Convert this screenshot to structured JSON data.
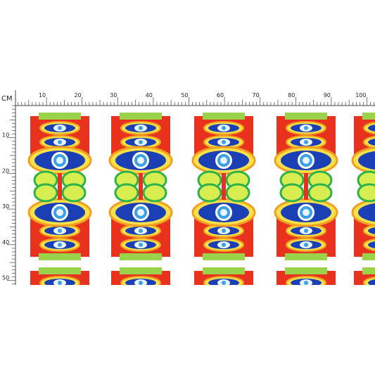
{
  "ruler": {
    "unit": "CM",
    "top_labels": [
      10,
      20,
      30,
      40,
      50,
      60,
      70,
      80,
      90,
      100
    ],
    "left_labels": [
      10,
      20,
      30,
      40,
      50
    ]
  }
}
